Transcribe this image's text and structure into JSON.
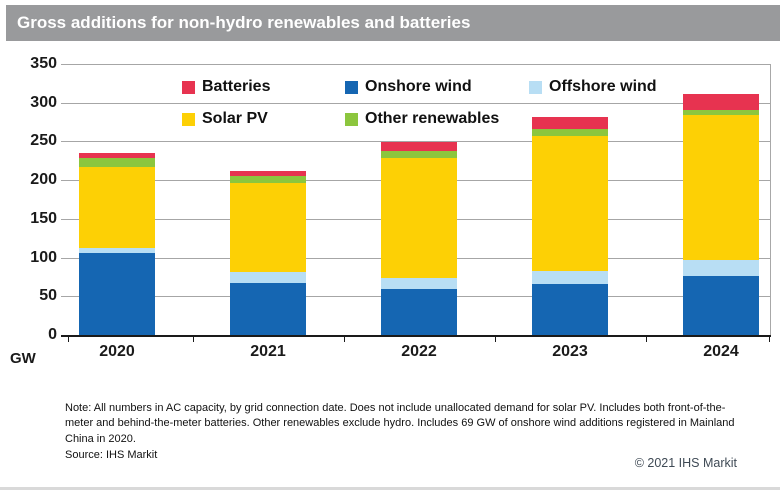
{
  "title_bar": {
    "title": "Gross additions for non-hydro renewables and batteries"
  },
  "chart_data": {
    "type": "bar",
    "stacked": true,
    "title": "Gross additions for non-hydro renewables and batteries",
    "categories": [
      "2020",
      "2021",
      "2022",
      "2023",
      "2024"
    ],
    "series": [
      {
        "name": "Onshore wind",
        "color": "#1566b2",
        "values": [
          106,
          67,
          60,
          66,
          76
        ]
      },
      {
        "name": "Offshore wind",
        "color": "#b8def4",
        "values": [
          7,
          14,
          13,
          17,
          21
        ]
      },
      {
        "name": "Solar PV",
        "color": "#fdd005",
        "values": [
          104,
          116,
          155,
          174,
          187
        ]
      },
      {
        "name": "Other renewables",
        "color": "#8cc63e",
        "values": [
          12,
          9,
          9,
          9,
          7
        ]
      },
      {
        "name": "Batteries",
        "color": "#e73350",
        "values": [
          6,
          6,
          12,
          15,
          20
        ]
      }
    ],
    "totals": [
      235,
      212,
      249,
      281,
      311
    ],
    "xlabel": "",
    "ylabel": "GW",
    "ylim": [
      0,
      350
    ],
    "ytick_interval": 50,
    "yticks": [
      0,
      50,
      100,
      150,
      200,
      250,
      300,
      350
    ],
    "grid": true,
    "legend_position": "top-inside",
    "legend_rows": [
      [
        "Batteries",
        "Onshore wind",
        "Offshore wind"
      ],
      [
        "Solar PV",
        "Other renewables"
      ]
    ]
  },
  "footer": {
    "note": "Note: All numbers in AC capacity, by grid connection date. Does not include unallocated demand for solar PV. Includes both front-of-the-meter and behind-the-meter batteries. Other renewables exclude hydro. Includes 69 GW of onshore wind additions registered in Mainland China in 2020.",
    "source": "Source: IHS Markit",
    "copyright": "© 2021 IHS Markit"
  },
  "colors": {
    "title_bar_bg": "#999a9c",
    "gridline": "#a6a6a6",
    "axis": "#1a1a1a",
    "copyright_text": "#3f4a55"
  }
}
